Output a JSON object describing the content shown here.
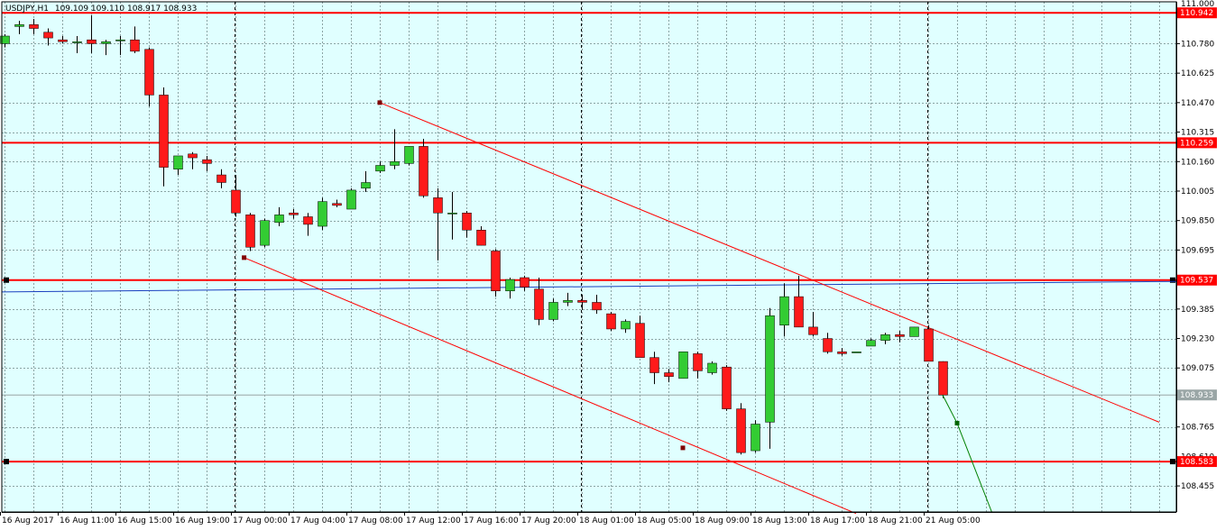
{
  "window": {
    "symbol": "USDJPY,H1",
    "ohlc": "109.109 109.110 108.917 108.933"
  },
  "colors": {
    "background": "#e0ffff",
    "grid": "#8aa4a4",
    "axis": "#000000",
    "bull": "#33cc33",
    "bear": "#ff1a1a",
    "hline": "#ff0000",
    "trend": "#ff0000",
    "ma": "#1a3fbf",
    "forecast": "#008000",
    "current": "#9aa6a6"
  },
  "chart_data": {
    "type": "candlestick",
    "title": "USDJPY,H1",
    "grid": true,
    "ylim": [
      108.318,
      111.0
    ],
    "x_labels": [
      {
        "i": 0,
        "label": "16 Aug 2017"
      },
      {
        "i": 4,
        "label": "16 Aug 11:00"
      },
      {
        "i": 8,
        "label": "16 Aug 15:00"
      },
      {
        "i": 12,
        "label": "16 Aug 19:00"
      },
      {
        "i": 16,
        "label": "17 Aug 00:00"
      },
      {
        "i": 20,
        "label": "17 Aug 04:00"
      },
      {
        "i": 24,
        "label": "17 Aug 08:00"
      },
      {
        "i": 28,
        "label": "17 Aug 12:00"
      },
      {
        "i": 32,
        "label": "17 Aug 16:00"
      },
      {
        "i": 36,
        "label": "17 Aug 20:00"
      },
      {
        "i": 40,
        "label": "18 Aug 01:00"
      },
      {
        "i": 44,
        "label": "18 Aug 05:00"
      },
      {
        "i": 48,
        "label": "18 Aug 09:00"
      },
      {
        "i": 52,
        "label": "18 Aug 13:00"
      },
      {
        "i": 56,
        "label": "18 Aug 17:00"
      },
      {
        "i": 60,
        "label": "18 Aug 21:00"
      },
      {
        "i": 64,
        "label": "21 Aug 05:00"
      }
    ],
    "y_ticks": [
      "110.780",
      "110.625",
      "110.470",
      "110.315",
      "110.160",
      "110.005",
      "109.850",
      "109.695",
      "109.385",
      "109.230",
      "109.075",
      "108.765",
      "108.455"
    ],
    "candles": [
      [
        110.78,
        110.83,
        110.76,
        110.82
      ],
      [
        110.87,
        110.9,
        110.83,
        110.88
      ],
      [
        110.88,
        110.91,
        110.83,
        110.86
      ],
      [
        110.84,
        110.86,
        110.77,
        110.81
      ],
      [
        110.8,
        110.82,
        110.78,
        110.79
      ],
      [
        110.79,
        110.82,
        110.73,
        110.79
      ],
      [
        110.8,
        110.93,
        110.73,
        110.78
      ],
      [
        110.78,
        110.8,
        110.72,
        110.79
      ],
      [
        110.8,
        110.82,
        110.72,
        110.8
      ],
      [
        110.8,
        110.87,
        110.73,
        110.74
      ],
      [
        110.75,
        110.76,
        110.45,
        110.51
      ],
      [
        110.51,
        110.55,
        110.03,
        110.13
      ],
      [
        110.12,
        110.19,
        110.09,
        110.19
      ],
      [
        110.2,
        110.21,
        110.12,
        110.18
      ],
      [
        110.17,
        110.19,
        110.11,
        110.15
      ],
      [
        110.09,
        110.12,
        110.02,
        110.05
      ],
      [
        110.01,
        110.09,
        109.87,
        109.89
      ],
      [
        109.88,
        109.89,
        109.69,
        109.71
      ],
      [
        109.72,
        109.86,
        109.71,
        109.85
      ],
      [
        109.84,
        109.92,
        109.82,
        109.88
      ],
      [
        109.89,
        109.91,
        109.86,
        109.88
      ],
      [
        109.87,
        109.89,
        109.77,
        109.83
      ],
      [
        109.82,
        109.97,
        109.8,
        109.95
      ],
      [
        109.94,
        109.96,
        109.92,
        109.93
      ],
      [
        109.91,
        110.02,
        109.91,
        110.01
      ],
      [
        110.02,
        110.11,
        110.0,
        110.05
      ],
      [
        110.11,
        110.16,
        110.1,
        110.14
      ],
      [
        110.14,
        110.33,
        110.12,
        110.16
      ],
      [
        110.15,
        110.24,
        110.14,
        110.24
      ],
      [
        110.24,
        110.28,
        109.97,
        109.98
      ],
      [
        109.97,
        110.02,
        109.64,
        109.89
      ],
      [
        109.89,
        110.0,
        109.75,
        109.89
      ],
      [
        109.89,
        109.9,
        109.76,
        109.8
      ],
      [
        109.8,
        109.82,
        109.72,
        109.72
      ],
      [
        109.69,
        109.7,
        109.45,
        109.48
      ],
      [
        109.48,
        109.55,
        109.44,
        109.54
      ],
      [
        109.55,
        109.56,
        109.48,
        109.5
      ],
      [
        109.49,
        109.55,
        109.3,
        109.33
      ],
      [
        109.33,
        109.44,
        109.32,
        109.42
      ],
      [
        109.42,
        109.47,
        109.4,
        109.43
      ],
      [
        109.43,
        109.46,
        109.38,
        109.42
      ],
      [
        109.42,
        109.46,
        109.36,
        109.38
      ],
      [
        109.36,
        109.37,
        109.27,
        109.28
      ],
      [
        109.28,
        109.33,
        109.26,
        109.32
      ],
      [
        109.31,
        109.35,
        109.15,
        109.13
      ],
      [
        109.13,
        109.16,
        108.99,
        109.05
      ],
      [
        109.05,
        109.07,
        109.0,
        109.03
      ],
      [
        109.02,
        109.15,
        109.02,
        109.16
      ],
      [
        109.15,
        109.16,
        109.02,
        109.06
      ],
      [
        109.05,
        109.11,
        109.04,
        109.1
      ],
      [
        109.08,
        109.09,
        108.85,
        108.86
      ],
      [
        108.86,
        108.89,
        108.62,
        108.63
      ],
      [
        108.64,
        108.8,
        108.63,
        108.78
      ],
      [
        108.79,
        109.39,
        108.65,
        109.35
      ],
      [
        109.3,
        109.52,
        109.24,
        109.45
      ],
      [
        109.45,
        109.56,
        109.29,
        109.29
      ],
      [
        109.29,
        109.37,
        109.24,
        109.25
      ],
      [
        109.23,
        109.26,
        109.15,
        109.16
      ],
      [
        109.16,
        109.18,
        109.14,
        109.15
      ],
      [
        109.16,
        109.16,
        109.16,
        109.16
      ],
      [
        109.19,
        109.23,
        109.19,
        109.22
      ],
      [
        109.22,
        109.26,
        109.2,
        109.25
      ],
      [
        109.25,
        109.27,
        109.21,
        109.24
      ],
      [
        109.24,
        109.29,
        109.24,
        109.29
      ],
      [
        109.28,
        109.3,
        109.11,
        109.11
      ],
      [
        109.109,
        109.11,
        108.917,
        108.933
      ]
    ],
    "hlines": [
      {
        "price": 110.942,
        "label": "110.942"
      },
      {
        "price": 110.259,
        "label": "110.259"
      },
      {
        "price": 109.537,
        "label": "109.537"
      },
      {
        "price": 108.583,
        "label": "108.583"
      }
    ],
    "current_price": {
      "price": 108.933,
      "label": "108.933"
    },
    "top_label": "111.000",
    "partial_label": "108.610",
    "ma_line": {
      "start": 109.475,
      "end": 109.53
    },
    "trendlines": [
      {
        "i1": 26,
        "p1": 110.47,
        "i2": 80,
        "p2": 108.79
      },
      {
        "i1": 16.6,
        "p1": 109.655,
        "i2": 59,
        "p2": 108.31
      }
    ],
    "trend_markers": [
      {
        "i": 26,
        "p": 110.47
      },
      {
        "i": 16.6,
        "p": 109.655
      },
      {
        "i": 47,
        "p": 108.655
      }
    ],
    "forecast": [
      {
        "i": 65,
        "p": 108.933
      },
      {
        "i": 66,
        "p": 108.785
      },
      {
        "i": 68.4,
        "p": 108.318
      }
    ]
  }
}
